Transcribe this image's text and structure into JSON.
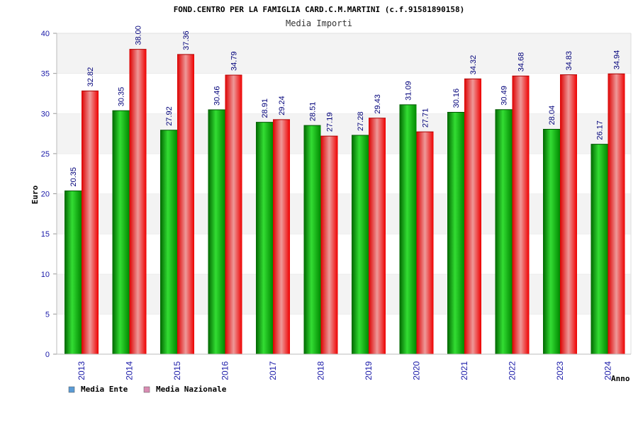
{
  "chart_data": {
    "type": "bar",
    "title": "FOND.CENTRO PER LA FAMIGLIA CARD.C.M.MARTINI (c.f.91581890158)",
    "subtitle": "Media Importi",
    "xlabel": "Anno",
    "ylabel": "Euro",
    "ylim": [
      0,
      40
    ],
    "yticks": [
      0,
      5,
      10,
      15,
      20,
      25,
      30,
      35,
      40
    ],
    "grid": "horizontal bands",
    "legend_position": "bottom-left",
    "categories": [
      "2013",
      "2014",
      "2015",
      "2016",
      "2017",
      "2018",
      "2019",
      "2020",
      "2021",
      "2022",
      "2023",
      "2024"
    ],
    "series": [
      {
        "name": "Media Ente",
        "color": "#00aa00",
        "legend_color": "#5b9bd5",
        "values": [
          20.35,
          30.35,
          27.92,
          30.46,
          28.91,
          28.51,
          27.28,
          31.09,
          30.16,
          30.49,
          28.04,
          26.17
        ],
        "labels": [
          "20.35",
          "30.35",
          "27.92",
          "30.46",
          "28.91",
          "28.51",
          "27.28",
          "31.09",
          "30.16",
          "30.49",
          "28.04",
          "26.17"
        ]
      },
      {
        "name": "Media Nazionale",
        "color": "#ee1111",
        "legend_color": "#d98cb3",
        "values": [
          32.82,
          38.0,
          37.36,
          34.79,
          29.24,
          27.19,
          29.43,
          27.71,
          34.32,
          34.68,
          34.83,
          34.94
        ],
        "labels": [
          "32.82",
          "38.00",
          "37.36",
          "34.79",
          "29.24",
          "27.19",
          "29.43",
          "27.71",
          "34.32",
          "34.68",
          "34.83",
          "34.94"
        ]
      }
    ]
  }
}
